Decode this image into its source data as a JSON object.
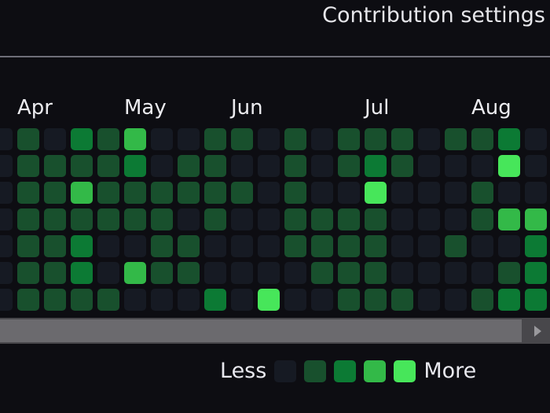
{
  "header": {
    "settings_label": "Contribution settings"
  },
  "months": [
    {
      "label": "Apr",
      "col": 1
    },
    {
      "label": "May",
      "col": 5
    },
    {
      "label": "Jun",
      "col": 9
    },
    {
      "label": "Jul",
      "col": 14
    },
    {
      "label": "Aug",
      "col": 18
    }
  ],
  "colors": [
    "#161a23",
    "#18502d",
    "#0c7a34",
    "#33b948",
    "#47e65a"
  ],
  "levels": [
    [
      0,
      1,
      0,
      2,
      1,
      3,
      0,
      0,
      1,
      1,
      0,
      1,
      0,
      1,
      1,
      1,
      0,
      1,
      1,
      2,
      0
    ],
    [
      0,
      1,
      1,
      1,
      1,
      2,
      0,
      1,
      1,
      0,
      0,
      1,
      0,
      1,
      2,
      1,
      0,
      0,
      0,
      4,
      0
    ],
    [
      0,
      1,
      1,
      3,
      1,
      1,
      1,
      1,
      1,
      1,
      0,
      1,
      0,
      0,
      4,
      0,
      0,
      0,
      1,
      0,
      0
    ],
    [
      0,
      1,
      1,
      1,
      1,
      1,
      1,
      0,
      1,
      0,
      0,
      1,
      1,
      1,
      1,
      0,
      0,
      0,
      1,
      3,
      3
    ],
    [
      0,
      1,
      1,
      2,
      0,
      0,
      1,
      1,
      0,
      0,
      0,
      1,
      1,
      1,
      1,
      0,
      0,
      1,
      0,
      0,
      2
    ],
    [
      0,
      1,
      1,
      2,
      0,
      3,
      1,
      1,
      0,
      0,
      0,
      0,
      1,
      1,
      1,
      0,
      0,
      0,
      0,
      1,
      2
    ],
    [
      0,
      1,
      1,
      1,
      1,
      0,
      0,
      0,
      2,
      0,
      4,
      0,
      0,
      1,
      1,
      1,
      0,
      0,
      1,
      2,
      2
    ]
  ],
  "legend": {
    "less": "Less",
    "more": "More"
  }
}
